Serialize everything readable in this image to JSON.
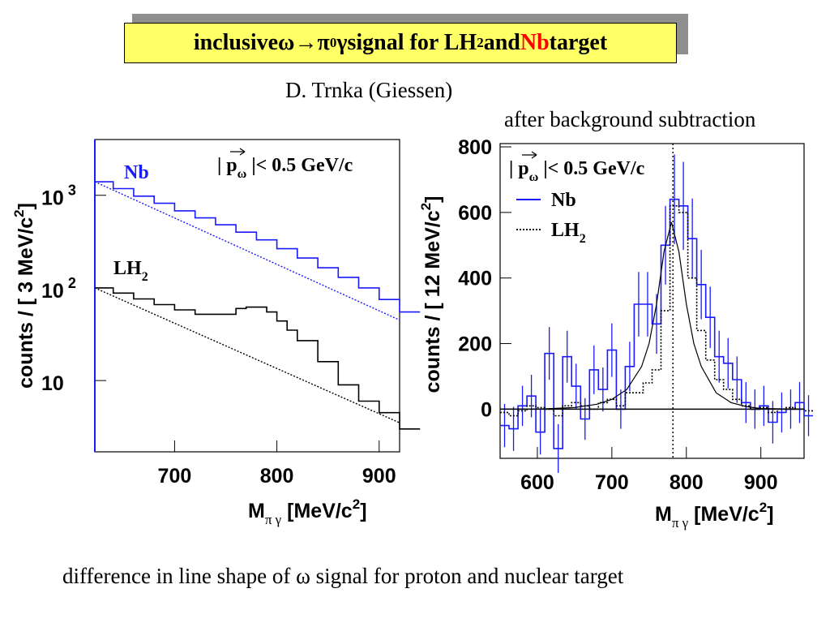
{
  "slide": {
    "title": {
      "part1": "inclusive ",
      "part_omega": "ω",
      "part_arrow": "→",
      "part_pi": "π",
      "part_zero": "0",
      "part_gamma": "γ",
      "part2": " signal for LH",
      "part_sub2": "2",
      "part3": " and ",
      "part_nb": "Nb",
      "part4": " target"
    },
    "author": "D. Trnka (Giessen)",
    "note": "after background subtraction",
    "caption": "difference in line shape of ω signal for proton and nuclear target"
  },
  "colors": {
    "nb": "#1a1aff",
    "lh2": "#000000",
    "title_bg": "#ffff66",
    "title_nb": "#ff0000"
  },
  "chart_data": [
    {
      "type": "line",
      "yscale": "log",
      "xlim": [
        622,
        920
      ],
      "ylim": [
        1.7,
        4000
      ],
      "xticks": [
        700,
        800,
        900
      ],
      "yticks": [
        {
          "value": 10,
          "label": "10"
        },
        {
          "value": 100,
          "label": "10",
          "exp": "2"
        },
        {
          "value": 1000,
          "label": "10",
          "exp": "3"
        }
      ],
      "ylabel": "counts / [ 3 MeV/c",
      "ylabel_sup": "2",
      "ylabel_end": "]",
      "xlabel": "M",
      "xlabel_sub": "π γ",
      "xlabel_end": " [MeV/c",
      "xlabel_sup": "2",
      "xlabel_tail": "]",
      "cut_label": "| p",
      "cut_sub": "ω",
      "cut_rest": " |< 0.5 GeV/c",
      "series": [
        {
          "name": "Nb",
          "color": "#1a1aff",
          "x": [
            622,
            640,
            660,
            680,
            700,
            720,
            740,
            760,
            780,
            800,
            820,
            840,
            860,
            880,
            900,
            920
          ],
          "y": [
            1400,
            1180,
            980,
            820,
            680,
            570,
            480,
            400,
            330,
            265,
            210,
            165,
            130,
            100,
            75,
            55
          ],
          "background": {
            "x": [
              622,
              920
            ],
            "y": [
              1400,
              45
            ]
          }
        },
        {
          "name": "LH",
          "name_sub": "2",
          "color": "#000000",
          "x": [
            622,
            640,
            660,
            680,
            700,
            720,
            740,
            760,
            770,
            780,
            790,
            800,
            810,
            820,
            840,
            860,
            880,
            900,
            920
          ],
          "y": [
            100,
            88,
            76,
            66,
            58,
            52,
            52,
            60,
            62,
            62,
            55,
            44,
            35,
            27,
            16,
            9,
            6,
            4.5,
            3
          ],
          "background": {
            "x": [
              622,
              920
            ],
            "y": [
              100,
              3.5
            ]
          }
        }
      ]
    },
    {
      "type": "line",
      "xlim": [
        550,
        958
      ],
      "ylim": [
        -150,
        810
      ],
      "xticks": [
        600,
        700,
        800,
        900
      ],
      "yticks": [
        0,
        200,
        400,
        600,
        800
      ],
      "ylabel": "counts / [ 12 MeV/c",
      "ylabel_sup": "2",
      "ylabel_end": "]",
      "xlabel": "M",
      "xlabel_sub": "π γ",
      "xlabel_end": " [MeV/c",
      "xlabel_sup": "2",
      "xlabel_tail": "]",
      "cut_label": "| p",
      "cut_sub": "ω",
      "cut_rest": " |< 0.5 GeV/c",
      "legend": [
        {
          "label": "Nb",
          "sub": "",
          "color": "#1a1aff",
          "style": "solid"
        },
        {
          "label": "LH",
          "sub": "2",
          "color": "#000000",
          "style": "dotted"
        }
      ],
      "peak_marker": 782,
      "series": [
        {
          "name": "Nb",
          "color": "#1a1aff",
          "x": [
            550,
            562,
            574,
            586,
            598,
            610,
            622,
            634,
            646,
            658,
            670,
            682,
            694,
            706,
            718,
            730,
            742,
            754,
            766,
            778,
            790,
            802,
            814,
            826,
            838,
            850,
            862,
            874,
            886,
            898,
            910,
            922,
            934,
            946,
            958
          ],
          "y": [
            -50,
            -60,
            10,
            40,
            -70,
            170,
            -120,
            160,
            70,
            -30,
            120,
            60,
            180,
            0,
            130,
            320,
            320,
            260,
            500,
            640,
            620,
            520,
            380,
            280,
            160,
            140,
            90,
            20,
            0,
            10,
            -40,
            -10,
            0,
            20,
            -20
          ]
        },
        {
          "name": "LH2",
          "color": "#000000",
          "x": [
            550,
            562,
            574,
            586,
            598,
            610,
            622,
            634,
            646,
            658,
            670,
            682,
            694,
            706,
            718,
            730,
            742,
            754,
            766,
            778,
            790,
            802,
            814,
            826,
            838,
            850,
            862,
            874,
            886,
            898,
            910,
            922,
            934,
            946,
            958
          ],
          "y": [
            -10,
            -20,
            -5,
            10,
            5,
            0,
            -20,
            10,
            20,
            10,
            0,
            20,
            30,
            10,
            50,
            50,
            80,
            120,
            300,
            620,
            600,
            400,
            240,
            150,
            90,
            60,
            30,
            10,
            0,
            5,
            -10,
            0,
            5,
            0,
            -5
          ]
        },
        {
          "name": "fit",
          "color": "#000000",
          "x": [
            550,
            600,
            650,
            680,
            700,
            720,
            740,
            750,
            760,
            770,
            780,
            790,
            800,
            810,
            820,
            840,
            860,
            880,
            900,
            958
          ],
          "y": [
            0,
            0,
            5,
            15,
            30,
            60,
            130,
            200,
            320,
            480,
            570,
            480,
            320,
            200,
            130,
            50,
            20,
            8,
            2,
            0
          ]
        }
      ]
    }
  ]
}
